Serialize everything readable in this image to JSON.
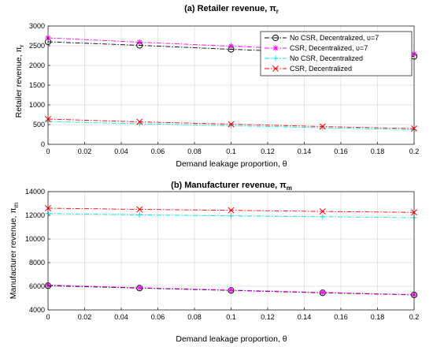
{
  "chart_data": [
    {
      "type": "line",
      "title": "(a) Retailer revenue, π",
      "title_sub": "r",
      "xlabel": "Demand leakage proportion, θ",
      "ylabel": "Retailer revenue, π",
      "ylabel_sub": "r",
      "xlim": [
        0,
        0.2
      ],
      "ylim": [
        0,
        3000
      ],
      "xticks": [
        0,
        0.02,
        0.04,
        0.06,
        0.08,
        0.1,
        0.12,
        0.14,
        0.16,
        0.18,
        0.2
      ],
      "xtick_labels": [
        "0",
        "0.02",
        "0.04",
        "0.06",
        "0.08",
        "0.1",
        "0.12",
        "0.14",
        "0.16",
        "0.18",
        "0.2"
      ],
      "yticks": [
        0,
        500,
        1000,
        1500,
        2000,
        2500,
        3000
      ],
      "ytick_labels": [
        "0",
        "500",
        "1000",
        "1500",
        "2000",
        "2500",
        "3000"
      ],
      "grid": true,
      "legend_position": "top-right",
      "series": [
        {
          "name": "No CSR, Decentralized, υ=7",
          "color": "#000000",
          "marker": "circle",
          "x": [
            0,
            0.05,
            0.1,
            0.15,
            0.2
          ],
          "y": [
            2600,
            2510,
            2410,
            2320,
            2230
          ]
        },
        {
          "name": "CSR, Decentralized, υ=7",
          "color": "#ff00ff",
          "marker": "star",
          "x": [
            0,
            0.05,
            0.1,
            0.15,
            0.2
          ],
          "y": [
            2700,
            2590,
            2490,
            2390,
            2290
          ]
        },
        {
          "name": "No CSR, Decentralized",
          "color": "#00e5e5",
          "marker": "plus",
          "x": [
            0,
            0.05,
            0.1,
            0.15,
            0.2
          ],
          "y": [
            580,
            520,
            470,
            420,
            370
          ]
        },
        {
          "name": "CSR, Decentralized",
          "color": "#ff0000",
          "marker": "x",
          "x": [
            0,
            0.05,
            0.1,
            0.15,
            0.2
          ],
          "y": [
            640,
            570,
            510,
            450,
            400
          ]
        }
      ]
    },
    {
      "type": "line",
      "title": "(b) Manufacturer revenue, π",
      "title_sub": "m",
      "xlabel": "Demand leakage proportion, θ",
      "ylabel": "Manufacturer revenue, π",
      "ylabel_sub": "m",
      "xlim": [
        0,
        0.2
      ],
      "ylim": [
        4000,
        14000
      ],
      "xticks": [
        0,
        0.02,
        0.04,
        0.06,
        0.08,
        0.1,
        0.12,
        0.14,
        0.16,
        0.18,
        0.2
      ],
      "xtick_labels": [
        "0",
        "0.02",
        "0.04",
        "0.06",
        "0.08",
        "0.1",
        "0.12",
        "0.14",
        "0.16",
        "0.18",
        "0.2"
      ],
      "yticks": [
        4000,
        6000,
        8000,
        10000,
        12000,
        14000
      ],
      "ytick_labels": [
        "4000",
        "6000",
        "8000",
        "10000",
        "12000",
        "14000"
      ],
      "grid": true,
      "series": [
        {
          "color": "#000000",
          "marker": "circle",
          "x": [
            0,
            0.05,
            0.1,
            0.15,
            0.2
          ],
          "y": [
            6050,
            5850,
            5650,
            5450,
            5270
          ]
        },
        {
          "color": "#ff00ff",
          "marker": "star",
          "x": [
            0,
            0.05,
            0.1,
            0.15,
            0.2
          ],
          "y": [
            6100,
            5880,
            5680,
            5480,
            5290
          ]
        },
        {
          "color": "#00e5e5",
          "marker": "plus",
          "x": [
            0,
            0.05,
            0.1,
            0.15,
            0.2
          ],
          "y": [
            12150,
            12050,
            11950,
            11880,
            11800
          ]
        },
        {
          "color": "#ff0000",
          "marker": "x",
          "x": [
            0,
            0.05,
            0.1,
            0.15,
            0.2
          ],
          "y": [
            12600,
            12500,
            12420,
            12330,
            12250
          ]
        }
      ]
    }
  ]
}
